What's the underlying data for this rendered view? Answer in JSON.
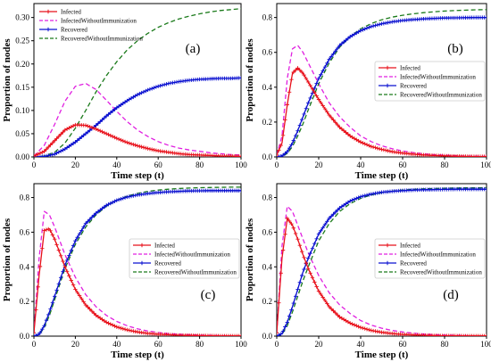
{
  "style": {
    "colors": {
      "Infected": "#e8101a",
      "InfectedWithoutImmunization": "#e020e0",
      "Recovered": "#0a10d0",
      "RecoveredWithoutImmunization": "#1a7a1a"
    },
    "axis_color": "#000000"
  },
  "chart_data": [
    {
      "type": "line",
      "panel_label": "(a)",
      "xlabel": "Time step (t)",
      "ylabel": "Proportion of nodes",
      "xlim": [
        0,
        100
      ],
      "ylim": [
        0,
        0.33
      ],
      "xticks": [
        0,
        20,
        40,
        60,
        80,
        100
      ],
      "yticks": [
        0.0,
        0.05,
        0.1,
        0.15,
        0.2,
        0.25,
        0.3
      ],
      "ytick_labels": [
        "0.00",
        "0.05",
        "0.10",
        "0.15",
        "0.20",
        "0.25",
        "0.30"
      ],
      "xtick_labels": [
        "0",
        "20",
        "40",
        "60",
        "80",
        "100"
      ],
      "legend_position": "top-left",
      "legend_entries": [
        "Infected",
        "InfectedWithoutImmunization",
        "Recovered",
        "RecoveredWithoutImmunization"
      ],
      "x": [
        0,
        5,
        10,
        15,
        20,
        25,
        30,
        35,
        40,
        45,
        50,
        55,
        60,
        65,
        70,
        75,
        80,
        85,
        90,
        95,
        100
      ],
      "series": [
        {
          "name": "Infected",
          "marker": "plus",
          "dash": false,
          "values": [
            0.002,
            0.012,
            0.035,
            0.058,
            0.069,
            0.068,
            0.06,
            0.05,
            0.04,
            0.031,
            0.024,
            0.018,
            0.013,
            0.01,
            0.007,
            0.005,
            0.004,
            0.003,
            0.002,
            0.002,
            0.001
          ]
        },
        {
          "name": "InfectedWithoutImmunization",
          "marker": "none",
          "dash": true,
          "values": [
            0.002,
            0.025,
            0.07,
            0.12,
            0.152,
            0.158,
            0.145,
            0.122,
            0.098,
            0.076,
            0.058,
            0.044,
            0.033,
            0.025,
            0.019,
            0.015,
            0.012,
            0.009,
            0.007,
            0.005,
            0.004
          ]
        },
        {
          "name": "Recovered",
          "marker": "plus",
          "dash": false,
          "values": [
            0.0,
            0.001,
            0.006,
            0.017,
            0.032,
            0.05,
            0.068,
            0.088,
            0.106,
            0.121,
            0.134,
            0.144,
            0.152,
            0.158,
            0.162,
            0.165,
            0.167,
            0.168,
            0.169,
            0.169,
            0.17
          ]
        },
        {
          "name": "RecoveredWithoutImmunization",
          "marker": "none",
          "dash": true,
          "values": [
            0.0,
            0.002,
            0.01,
            0.03,
            0.062,
            0.1,
            0.14,
            0.175,
            0.205,
            0.23,
            0.25,
            0.266,
            0.279,
            0.289,
            0.297,
            0.303,
            0.308,
            0.312,
            0.315,
            0.317,
            0.319
          ]
        }
      ]
    },
    {
      "type": "line",
      "panel_label": "(b)",
      "xlabel": "Time step (t)",
      "ylabel": "Proportion of nodes",
      "xlim": [
        0,
        100
      ],
      "ylim": [
        0,
        0.88
      ],
      "xticks": [
        0,
        20,
        40,
        60,
        80,
        100
      ],
      "yticks": [
        0.0,
        0.2,
        0.4,
        0.6,
        0.8
      ],
      "ytick_labels": [
        "0.0",
        "0.2",
        "0.4",
        "0.6",
        "0.8"
      ],
      "xtick_labels": [
        "0",
        "20",
        "40",
        "60",
        "80",
        "100"
      ],
      "legend_position": "center-right",
      "legend_entries": [
        "Infected",
        "InfectedWithoutImmunization",
        "Recovered",
        "RecoveredWithoutImmunization"
      ],
      "x": [
        0,
        2.5,
        5,
        7.5,
        10,
        12.5,
        15,
        20,
        25,
        30,
        35,
        40,
        45,
        50,
        55,
        60,
        65,
        70,
        75,
        80,
        85,
        90,
        95,
        100
      ],
      "series": [
        {
          "name": "Infected",
          "marker": "plus",
          "dash": false,
          "values": [
            0.01,
            0.08,
            0.3,
            0.48,
            0.51,
            0.48,
            0.43,
            0.33,
            0.24,
            0.17,
            0.12,
            0.085,
            0.06,
            0.043,
            0.03,
            0.022,
            0.016,
            0.011,
            0.008,
            0.006,
            0.004,
            0.003,
            0.002,
            0.002
          ]
        },
        {
          "name": "InfectedWithoutImmunization",
          "marker": "none",
          "dash": true,
          "values": [
            0.01,
            0.12,
            0.45,
            0.62,
            0.64,
            0.6,
            0.54,
            0.42,
            0.31,
            0.23,
            0.17,
            0.12,
            0.088,
            0.064,
            0.047,
            0.034,
            0.025,
            0.018,
            0.013,
            0.01,
            0.007,
            0.005,
            0.004,
            0.003
          ]
        },
        {
          "name": "Recovered",
          "marker": "plus",
          "dash": false,
          "values": [
            0.0,
            0.005,
            0.03,
            0.08,
            0.15,
            0.23,
            0.31,
            0.45,
            0.56,
            0.64,
            0.69,
            0.725,
            0.748,
            0.764,
            0.775,
            0.783,
            0.788,
            0.792,
            0.795,
            0.797,
            0.798,
            0.799,
            0.8,
            0.8
          ]
        },
        {
          "name": "RecoveredWithoutImmunization",
          "marker": "none",
          "dash": true,
          "values": [
            0.0,
            0.003,
            0.02,
            0.06,
            0.12,
            0.19,
            0.27,
            0.42,
            0.54,
            0.63,
            0.69,
            0.735,
            0.765,
            0.787,
            0.802,
            0.813,
            0.821,
            0.828,
            0.833,
            0.837,
            0.84,
            0.842,
            0.844,
            0.845
          ]
        }
      ]
    },
    {
      "type": "line",
      "panel_label": "(c)",
      "xlabel": "Time step (t)",
      "ylabel": "Proportion of nodes",
      "xlim": [
        0,
        100
      ],
      "ylim": [
        0,
        0.88
      ],
      "xticks": [
        0,
        20,
        40,
        60,
        80,
        100
      ],
      "yticks": [
        0.0,
        0.2,
        0.4,
        0.6,
        0.8
      ],
      "ytick_labels": [
        "0.0",
        "0.2",
        "0.4",
        "0.6",
        "0.8"
      ],
      "xtick_labels": [
        "0",
        "20",
        "40",
        "60",
        "80",
        "100"
      ],
      "legend_position": "center-right",
      "legend_entries": [
        "Infected",
        "InfectedWithoutImmunization",
        "Recovered",
        "RecoveredWithoutImmunization"
      ],
      "x": [
        0,
        2.5,
        5,
        7.5,
        10,
        12.5,
        15,
        20,
        25,
        30,
        35,
        40,
        45,
        50,
        55,
        60,
        65,
        70,
        75,
        80,
        85,
        90,
        95,
        100
      ],
      "series": [
        {
          "name": "Infected",
          "marker": "plus",
          "dash": false,
          "values": [
            0.02,
            0.35,
            0.61,
            0.62,
            0.56,
            0.48,
            0.4,
            0.27,
            0.18,
            0.12,
            0.08,
            0.053,
            0.036,
            0.024,
            0.016,
            0.011,
            0.008,
            0.005,
            0.004,
            0.003,
            0.002,
            0.001,
            0.001,
            0.001
          ]
        },
        {
          "name": "InfectedWithoutImmunization",
          "marker": "none",
          "dash": true,
          "values": [
            0.02,
            0.45,
            0.72,
            0.7,
            0.63,
            0.55,
            0.47,
            0.34,
            0.24,
            0.17,
            0.12,
            0.085,
            0.06,
            0.042,
            0.03,
            0.021,
            0.015,
            0.011,
            0.008,
            0.006,
            0.004,
            0.003,
            0.002,
            0.002
          ]
        },
        {
          "name": "Recovered",
          "marker": "plus",
          "dash": false,
          "values": [
            0.0,
            0.01,
            0.06,
            0.14,
            0.23,
            0.32,
            0.41,
            0.55,
            0.65,
            0.71,
            0.755,
            0.784,
            0.803,
            0.815,
            0.823,
            0.829,
            0.833,
            0.836,
            0.838,
            0.839,
            0.84,
            0.84,
            0.84,
            0.84
          ]
        },
        {
          "name": "RecoveredWithoutImmunization",
          "marker": "none",
          "dash": true,
          "values": [
            0.0,
            0.008,
            0.05,
            0.12,
            0.21,
            0.3,
            0.39,
            0.53,
            0.63,
            0.7,
            0.75,
            0.785,
            0.808,
            0.824,
            0.835,
            0.843,
            0.848,
            0.852,
            0.855,
            0.857,
            0.858,
            0.859,
            0.86,
            0.86
          ]
        }
      ]
    },
    {
      "type": "line",
      "panel_label": "(d)",
      "xlabel": "Time step (t)",
      "ylabel": "Proportion of nodes",
      "xlim": [
        0,
        100
      ],
      "ylim": [
        0,
        0.88
      ],
      "xticks": [
        0,
        20,
        40,
        60,
        80,
        100
      ],
      "yticks": [
        0.0,
        0.2,
        0.4,
        0.6,
        0.8
      ],
      "ytick_labels": [
        "0.0",
        "0.2",
        "0.4",
        "0.6",
        "0.8"
      ],
      "xtick_labels": [
        "0",
        "20",
        "40",
        "60",
        "80",
        "100"
      ],
      "legend_position": "center-right",
      "legend_entries": [
        "Infected",
        "InfectedWithoutImmunization",
        "Recovered",
        "RecoveredWithoutImmunization"
      ],
      "x": [
        0,
        2.5,
        5,
        7.5,
        10,
        12.5,
        15,
        20,
        25,
        30,
        35,
        40,
        45,
        50,
        55,
        60,
        65,
        70,
        75,
        80,
        85,
        90,
        95,
        100
      ],
      "series": [
        {
          "name": "Infected",
          "marker": "plus",
          "dash": false,
          "values": [
            0.02,
            0.45,
            0.68,
            0.64,
            0.56,
            0.47,
            0.39,
            0.26,
            0.17,
            0.11,
            0.075,
            0.05,
            0.033,
            0.022,
            0.015,
            0.01,
            0.007,
            0.005,
            0.003,
            0.002,
            0.002,
            0.001,
            0.001,
            0.001
          ]
        },
        {
          "name": "InfectedWithoutImmunization",
          "marker": "none",
          "dash": true,
          "values": [
            0.02,
            0.52,
            0.75,
            0.72,
            0.64,
            0.56,
            0.48,
            0.35,
            0.25,
            0.18,
            0.13,
            0.09,
            0.064,
            0.046,
            0.033,
            0.024,
            0.017,
            0.012,
            0.009,
            0.006,
            0.005,
            0.003,
            0.002,
            0.002
          ]
        },
        {
          "name": "Recovered",
          "marker": "plus",
          "dash": false,
          "values": [
            0.0,
            0.015,
            0.08,
            0.17,
            0.27,
            0.37,
            0.45,
            0.59,
            0.68,
            0.74,
            0.78,
            0.805,
            0.82,
            0.83,
            0.836,
            0.84,
            0.843,
            0.845,
            0.846,
            0.847,
            0.848,
            0.848,
            0.848,
            0.848
          ]
        },
        {
          "name": "RecoveredWithoutImmunization",
          "marker": "none",
          "dash": true,
          "values": [
            0.0,
            0.01,
            0.06,
            0.14,
            0.23,
            0.32,
            0.4,
            0.55,
            0.65,
            0.72,
            0.765,
            0.795,
            0.815,
            0.828,
            0.837,
            0.843,
            0.847,
            0.85,
            0.852,
            0.854,
            0.855,
            0.856,
            0.856,
            0.857
          ]
        }
      ]
    }
  ]
}
